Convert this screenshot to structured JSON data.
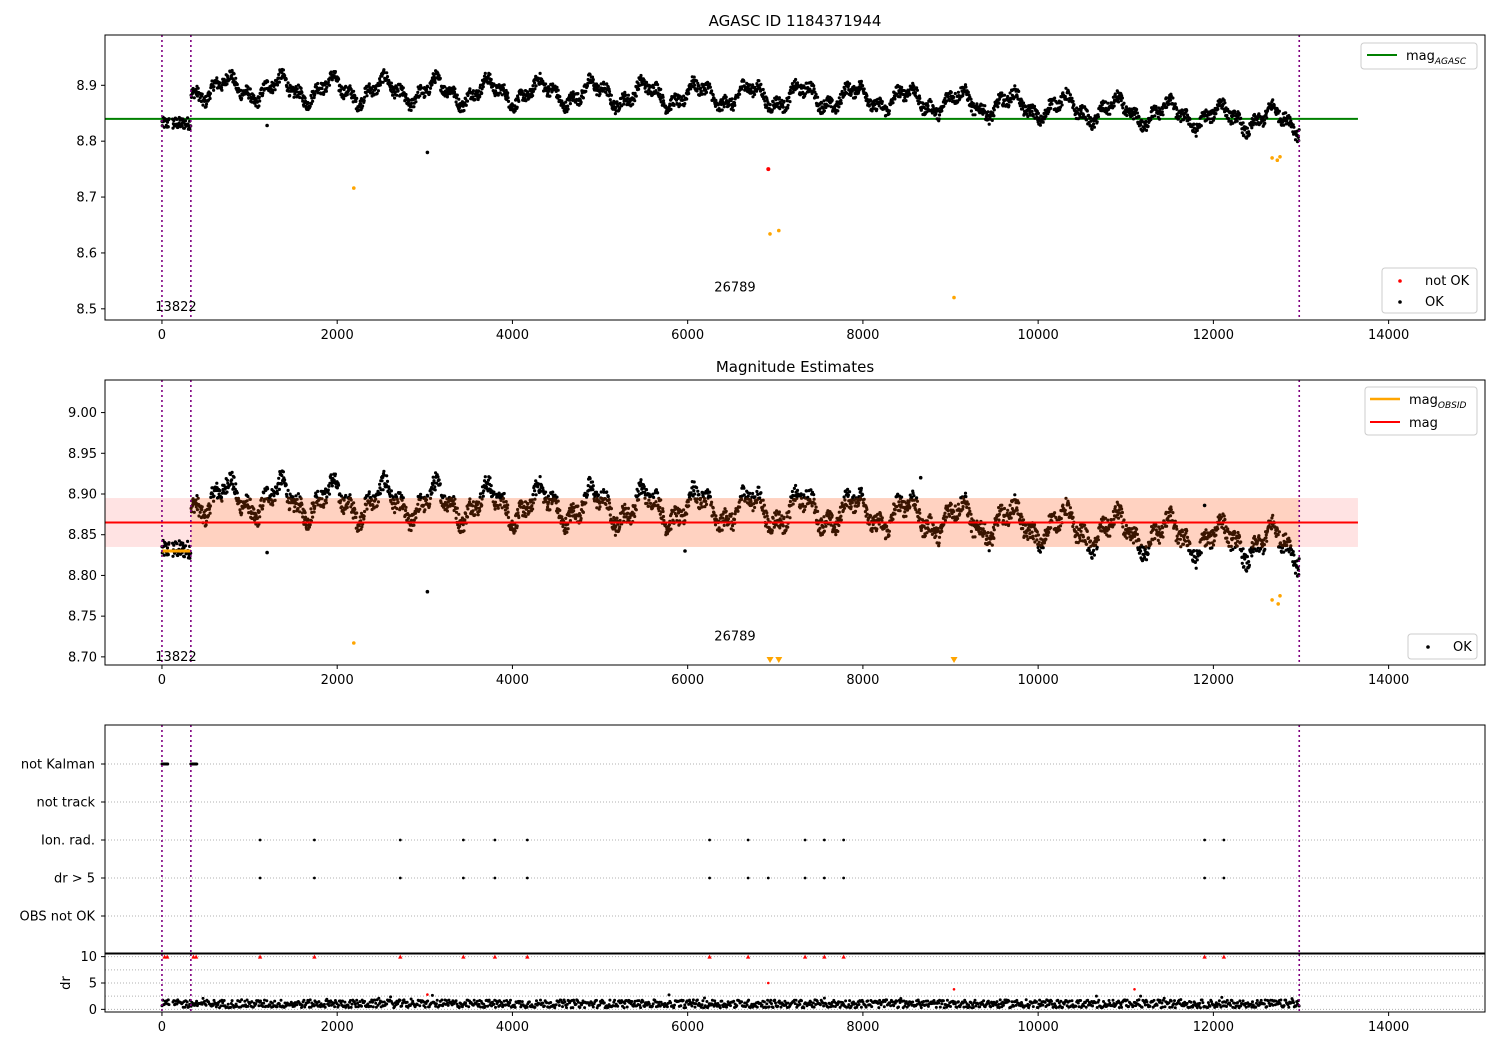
{
  "chart_data": [
    {
      "id": "agasc",
      "type": "scatter",
      "title": "AGASC ID 1184371944",
      "xlim": [
        -650,
        15100
      ],
      "ylim": [
        8.48,
        8.99
      ],
      "xticks": [
        0,
        2000,
        4000,
        6000,
        8000,
        10000,
        12000,
        14000
      ],
      "xtick_labels": [
        "0",
        "2000",
        "4000",
        "6000",
        "8000",
        "10000",
        "12000",
        "14000"
      ],
      "yticks": [
        8.5,
        8.6,
        8.7,
        8.8,
        8.9
      ],
      "ytick_labels": [
        "8.5",
        "8.6",
        "8.7",
        "8.8",
        "8.9"
      ],
      "grid": false,
      "vlines": [
        0,
        330,
        12980
      ],
      "hline": {
        "name": "mag",
        "subscript": "AGASC",
        "value": 8.84,
        "x_range": [
          -650,
          13650
        ],
        "color": "#008000"
      },
      "outliers_orange": [
        [
          2190,
          8.716
        ],
        [
          6940,
          8.634
        ],
        [
          7040,
          8.64
        ],
        [
          9040,
          8.52
        ],
        [
          12670,
          8.77
        ],
        [
          12730,
          8.766
        ],
        [
          12760,
          8.772
        ]
      ],
      "outliers_red": [
        [
          6920,
          8.75
        ]
      ],
      "outliers_black": [
        [
          1200,
          8.828
        ],
        [
          3030,
          8.78
        ]
      ],
      "annotations": [
        {
          "text": "13822",
          "x": 160,
          "y": 8.503
        },
        {
          "text": "26789",
          "x": 6540,
          "y": 8.538
        }
      ],
      "legend_top": [
        {
          "label": "mag",
          "subscript": "AGASC",
          "color": "#008000"
        }
      ],
      "legend_bottom": [
        {
          "label": "not OK",
          "color": "#ff0000"
        },
        {
          "label": "OK",
          "color": "#000000"
        }
      ],
      "legend_placement": {
        "top": "upper right",
        "bottom": "lower right"
      }
    },
    {
      "id": "estimates",
      "type": "scatter",
      "title": "Magnitude Estimates",
      "xlim": [
        -650,
        15100
      ],
      "ylim": [
        8.69,
        9.04
      ],
      "xticks": [
        0,
        2000,
        4000,
        6000,
        8000,
        10000,
        12000,
        14000
      ],
      "xtick_labels": [
        "0",
        "2000",
        "4000",
        "6000",
        "8000",
        "10000",
        "12000",
        "14000"
      ],
      "yticks": [
        8.7,
        8.75,
        8.8,
        8.85,
        8.9,
        8.95,
        9.0
      ],
      "ytick_labels": [
        "8.70",
        "8.75",
        "8.80",
        "8.85",
        "8.90",
        "8.95",
        "9.00"
      ],
      "grid": false,
      "vlines": [
        0,
        330,
        12980
      ],
      "mag": {
        "value": 8.865,
        "band": [
          8.835,
          8.895
        ],
        "x_range": [
          -650,
          13650
        ],
        "color": "#ff0000"
      },
      "obsid_segments": [
        {
          "x": [
            0,
            330
          ],
          "value": 8.83
        }
      ],
      "outliers_orange": [
        [
          2190,
          8.717
        ],
        [
          12670,
          8.77
        ],
        [
          12740,
          8.765
        ],
        [
          12760,
          8.775
        ]
      ],
      "triangles": [
        6940,
        7040,
        9040
      ],
      "outliers_black": [
        [
          1200,
          8.828
        ],
        [
          3030,
          8.78
        ],
        [
          5970,
          8.83
        ],
        [
          8660,
          8.92
        ],
        [
          11900,
          8.886
        ]
      ],
      "annotations": [
        {
          "text": "13822",
          "x": 160,
          "y": 8.7
        },
        {
          "text": "26789",
          "x": 6540,
          "y": 8.725
        }
      ],
      "legend_top": [
        {
          "label": "mag",
          "subscript": "OBSID",
          "color": "#ffa500"
        },
        {
          "label": "mag",
          "subscript": "",
          "color": "#ff0000"
        }
      ],
      "legend_bottom": [
        {
          "label": "OK",
          "color": "#000000"
        }
      ],
      "legend_placement": {
        "top": "upper right",
        "bottom": "lower right"
      }
    },
    {
      "id": "flags",
      "type": "scatter",
      "xlim": [
        -650,
        15100
      ],
      "categories": [
        "not Kalman",
        "not track",
        "Ion. rad.",
        "dr > 5",
        "OBS not OK"
      ],
      "not_kalman_ranges": [
        [
          0,
          70
        ],
        [
          330,
          400
        ]
      ],
      "ion_rad_x": [
        1120,
        1740,
        2720,
        3440,
        3800,
        4170,
        6250,
        6690,
        7340,
        7560,
        7780,
        11900,
        12120
      ],
      "dr5_x": [
        1120,
        1740,
        2720,
        3440,
        3800,
        4170,
        6250,
        6690,
        6920,
        7340,
        7560,
        7780,
        11900,
        12120
      ],
      "vlines": [
        0,
        330,
        12980
      ]
    },
    {
      "id": "dr",
      "type": "scatter",
      "ylabel": "dr",
      "xlim": [
        -650,
        15100
      ],
      "ylim": [
        -0.5,
        10.5
      ],
      "xticks": [
        0,
        2000,
        4000,
        6000,
        8000,
        10000,
        12000,
        14000
      ],
      "xtick_labels": [
        "0",
        "2000",
        "4000",
        "6000",
        "8000",
        "10000",
        "12000",
        "14000"
      ],
      "yticks": [
        0,
        5,
        10
      ],
      "ytick_labels": [
        "0",
        "5",
        "10"
      ],
      "grid_y": [
        0,
        2.5,
        5,
        7.5,
        10
      ],
      "dr_triangles_x": [
        30,
        60,
        360,
        390,
        1120,
        1740,
        2720,
        3440,
        3800,
        4170,
        6250,
        6690,
        7340,
        7560,
        7780,
        11900,
        12120
      ],
      "red_points": [
        [
          3030,
          2.8
        ],
        [
          6920,
          5.0
        ],
        [
          9040,
          3.8
        ],
        [
          11100,
          3.8
        ]
      ],
      "vlines": [
        0,
        330,
        12980
      ]
    }
  ]
}
